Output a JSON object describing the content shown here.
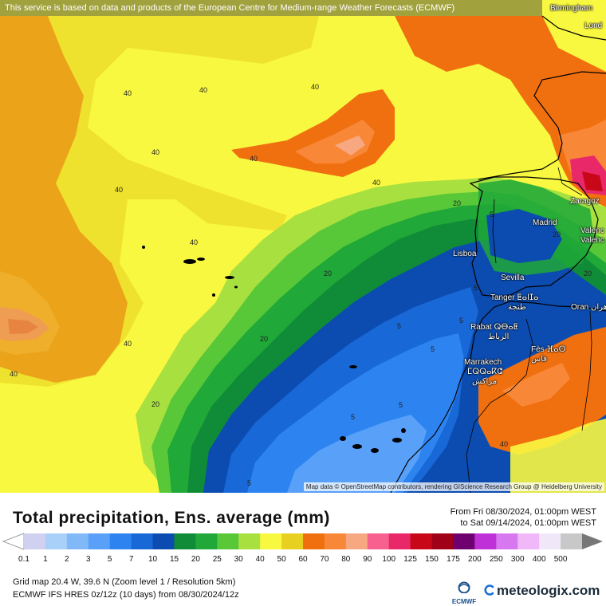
{
  "banner": {
    "notice": "This service is based on data and products of the European Centre for Medium-range Weather Forecasts (ECMWF)"
  },
  "map": {
    "attribution": "Map data © OpenStreetMap contributors, rendering GIScience Research Group @ Heidelberg University",
    "cities": [
      {
        "name": "Birmingham"
      },
      {
        "name": "Lond"
      },
      {
        "name": "Zaragoz"
      },
      {
        "name": "Madrid"
      },
      {
        "name": "Valenc"
      },
      {
        "name": "Valenc"
      },
      {
        "name": "Lisboa"
      },
      {
        "name": "Sevilla"
      },
      {
        "name": "Tanger ⵟⴰⵏⵊⴰ"
      },
      {
        "name": "طنجة"
      },
      {
        "name": "Oran وهران"
      },
      {
        "name": "Rabat ⵕⴱⴰⵟ"
      },
      {
        "name": "الرباط"
      },
      {
        "name": "Fès ⴼⴰⵙ"
      },
      {
        "name": "فاس"
      },
      {
        "name": "Marrakech"
      },
      {
        "name": "ⵎⵕⵕⴰⴽⵛ"
      },
      {
        "name": "مراكش"
      }
    ],
    "contour_labels": [
      "40",
      "40",
      "40",
      "40",
      "40",
      "40",
      "40",
      "40",
      "40",
      "40",
      "40",
      "20",
      "20",
      "20",
      "20",
      "20",
      "20",
      "5",
      "5",
      "5",
      "5",
      "5",
      "5",
      "5",
      "5"
    ],
    "colors": {
      "c0_1": "#d0d0f0",
      "c1": "#a8d0f8",
      "c2": "#80b8f8",
      "c3": "#58a0f8",
      "c5": "#2d84f0",
      "c7": "#1868d8",
      "c10": "#0c4cb0",
      "c15": "#108c38",
      "c20": "#20a838",
      "c25": "#58c838",
      "c30": "#a8e040",
      "c40": "#f8f840",
      "c50": "#e8d020",
      "c60": "#f07010",
      "c70": "#f88838",
      "c80": "#f8a880",
      "c90": "#f86090",
      "c100": "#e82868",
      "c125": "#c80818",
      "c150": "#a00018",
      "c175": "#700070",
      "c200": "#c030d8",
      "c250": "#d878f0",
      "c300": "#f0b8f8",
      "c400": "#f0e8f8",
      "c500": "#c8c8c8"
    }
  },
  "header": {
    "title": "Total precipitation, Ens. average (mm)",
    "period_from": "From Fri 08/30/2024, 01:00pm WEST",
    "period_to": "to Sat 09/14/2024, 01:00pm WEST"
  },
  "legend": {
    "labels": [
      "0.1",
      "1",
      "2",
      "3",
      "5",
      "7",
      "10",
      "15",
      "20",
      "25",
      "30",
      "40",
      "50",
      "60",
      "70",
      "80",
      "90",
      "100",
      "125",
      "150",
      "175",
      "200",
      "250",
      "300",
      "400",
      "500"
    ],
    "colors": [
      "#d0d0f0",
      "#a8d0f8",
      "#80b8f8",
      "#58a0f8",
      "#2d84f0",
      "#1868d8",
      "#0c4cb0",
      "#108c38",
      "#20a838",
      "#58c838",
      "#a8e040",
      "#f8f840",
      "#e8d020",
      "#f07010",
      "#f88838",
      "#f8a880",
      "#f86090",
      "#e82868",
      "#c80818",
      "#a00018",
      "#700070",
      "#c030d8",
      "#d878f0",
      "#f0b8f8",
      "#f0e8f8",
      "#c8c8c8"
    ]
  },
  "footer": {
    "grid_info": "Grid map 20.4 W, 39.6 N (Zoom level 1 / Resolution 5km)",
    "model_info": "ECMWF IFS HRES 0z/12z (10 days) from 08/30/2024/12z",
    "ecmwf_logo": "ECMWF",
    "brand": "meteologix.com"
  }
}
